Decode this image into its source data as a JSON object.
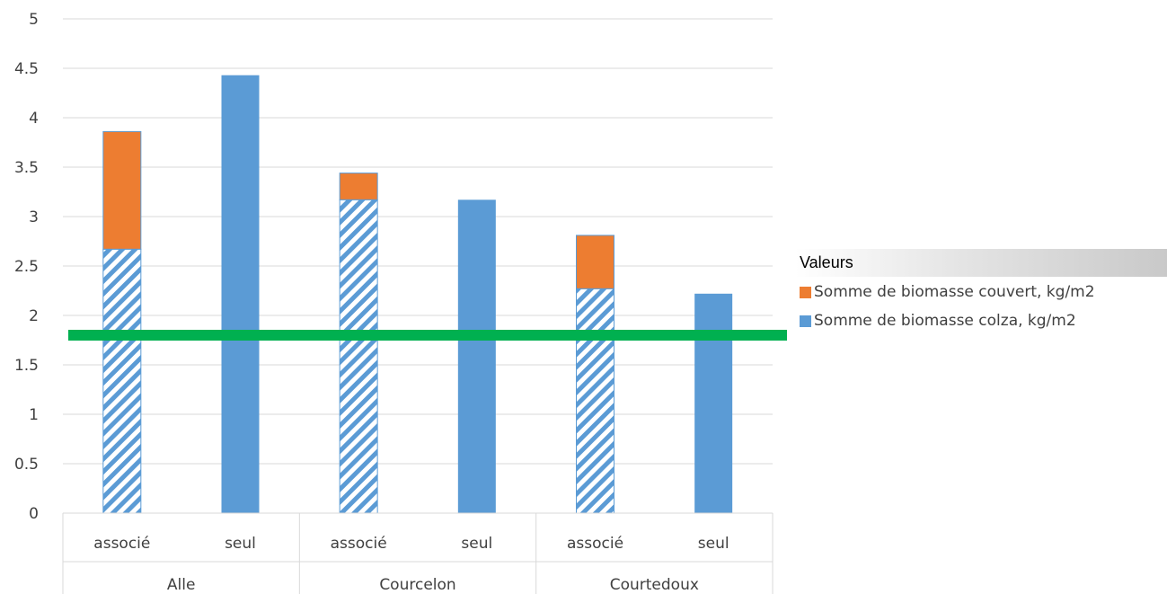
{
  "chart_data": {
    "type": "bar",
    "stacked": true,
    "groups": [
      {
        "name": "Alle",
        "subcategories": [
          "associé",
          "seul"
        ]
      },
      {
        "name": "Courcelon",
        "subcategories": [
          "associé",
          "seul"
        ]
      },
      {
        "name": "Courtedoux",
        "subcategories": [
          "associé",
          "seul"
        ]
      }
    ],
    "categories": [
      "associé",
      "seul",
      "associé",
      "seul",
      "associé",
      "seul"
    ],
    "series": [
      {
        "name": "Somme de biomasse colza, kg/m2",
        "color": "#5b9bd5",
        "values": [
          2.67,
          4.43,
          3.17,
          3.17,
          2.27,
          2.22
        ],
        "pattern": [
          "hatched",
          "solid",
          "hatched",
          "solid",
          "hatched",
          "solid"
        ]
      },
      {
        "name": "Somme de biomasse couvert, kg/m2",
        "color": "#ed7d31",
        "values": [
          1.19,
          0,
          0.27,
          0,
          0.54,
          0
        ]
      }
    ],
    "reference_line": {
      "value": 1.8,
      "color": "#00b050"
    },
    "ylim": [
      0,
      5
    ],
    "yticks": [
      "0",
      "0.5",
      "1",
      "1.5",
      "2",
      "2.5",
      "3",
      "3.5",
      "4",
      "4.5",
      "5"
    ],
    "grid": true,
    "legend": {
      "title": "Valeurs",
      "position": "right",
      "items": [
        {
          "label": "Somme de biomasse couvert, kg/m2",
          "color": "#ed7d31"
        },
        {
          "label": "Somme de biomasse colza, kg/m2",
          "color": "#5b9bd5"
        }
      ]
    }
  }
}
